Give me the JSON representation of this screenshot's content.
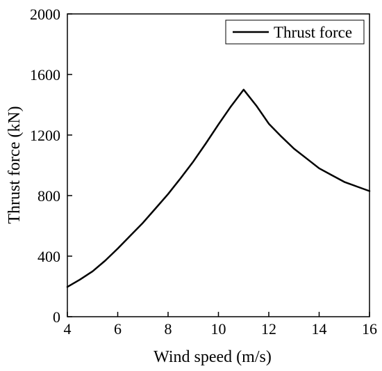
{
  "chart_data": {
    "type": "line",
    "title": "",
    "xlabel": "Wind speed (m/s)",
    "ylabel": "Thrust force (kN)",
    "xlim": [
      4,
      16
    ],
    "ylim": [
      0,
      2000
    ],
    "xticks": [
      "4",
      "6",
      "8",
      "10",
      "12",
      "14",
      "16"
    ],
    "yticks": [
      "0",
      "400",
      "800",
      "1200",
      "1600",
      "2000"
    ],
    "grid": false,
    "legend_position": "top-right",
    "series": [
      {
        "name": "Thrust force",
        "color": "#000000",
        "x": [
          4,
          4.5,
          5,
          5.5,
          6,
          6.5,
          7,
          7.5,
          8,
          8.5,
          9,
          9.5,
          10,
          10.5,
          11,
          11.5,
          12,
          12.5,
          13,
          13.5,
          14,
          14.5,
          15,
          15.5,
          16
        ],
        "y": [
          197,
          245,
          300,
          370,
          450,
          535,
          620,
          715,
          810,
          915,
          1025,
          1145,
          1270,
          1390,
          1500,
          1395,
          1275,
          1190,
          1110,
          1045,
          980,
          935,
          890,
          860,
          830
        ]
      }
    ]
  }
}
